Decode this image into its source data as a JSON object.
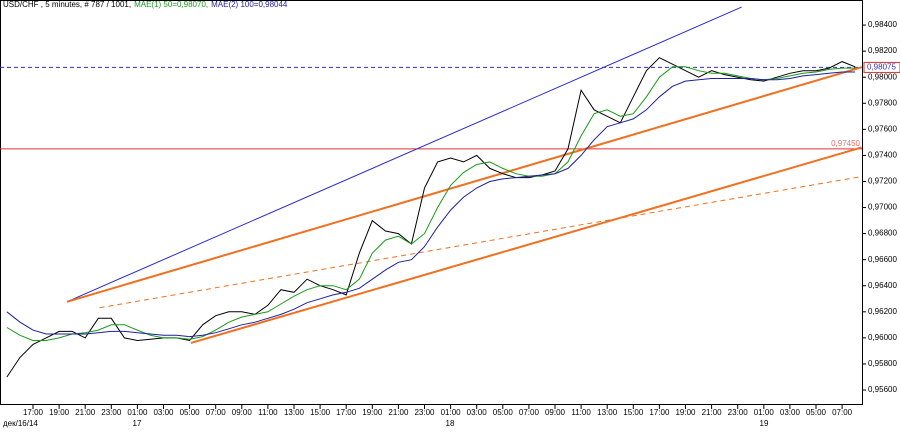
{
  "chart_data": {
    "type": "line",
    "title": "USD/CHF , 5 minutes, # 787 / 1001,",
    "categories": [
      null,
      null,
      "17:00",
      null,
      "19:00",
      null,
      "21:00",
      null,
      "23:00",
      null,
      "01:00",
      null,
      "03:00",
      null,
      "05:00",
      null,
      "07:00",
      null,
      "09:00",
      null,
      "11:00",
      null,
      "13:00",
      null,
      "15:00",
      null,
      "17:00",
      null,
      "19:00",
      null,
      "21:00",
      null,
      "23:00",
      null,
      "01:00",
      null,
      "03:00",
      null,
      "05:00",
      null,
      "07:00",
      null,
      "09:00",
      null,
      "11:00",
      null,
      "13:00",
      null,
      "15:00",
      null,
      "17:00",
      null,
      "19:00",
      null,
      "21:00",
      null,
      "23:00",
      null,
      "01:00",
      null,
      "03:00",
      null,
      "05:00",
      null,
      "07:00",
      null
    ],
    "day_labels": [
      "дек/16/14",
      "17",
      "18",
      "19"
    ],
    "series": [
      {
        "color": "#000000",
        "values": [
          0.957,
          0.9585,
          0.9595,
          0.96,
          0.9605,
          0.9605,
          0.96,
          0.9615,
          0.9615,
          0.96,
          0.9598,
          0.9599,
          0.96,
          0.96,
          0.9598,
          0.961,
          0.9617,
          0.962,
          0.962,
          0.9618,
          0.9625,
          0.9637,
          0.9635,
          0.9645,
          0.964,
          0.9637,
          0.9633,
          0.9665,
          0.969,
          0.9682,
          0.968,
          0.9672,
          0.9715,
          0.9735,
          0.9738,
          0.9735,
          0.974,
          0.973,
          0.9726,
          0.9723,
          0.9723,
          0.9725,
          0.9728,
          0.9745,
          0.979,
          0.9775,
          0.977,
          0.9765,
          0.9785,
          0.9805,
          0.9815,
          0.981,
          0.9805,
          0.98,
          0.9805,
          0.9802,
          0.98,
          0.9798,
          0.9797,
          0.98,
          0.9803,
          0.9805,
          0.9805,
          0.9807,
          0.9812,
          0.9808
        ]
      },
      {
        "name": "MAE(1) 50=0,98070,",
        "color": "#1a9a1a",
        "values": [
          0.9608,
          0.9602,
          0.9598,
          0.9598,
          0.96,
          0.9603,
          0.9604,
          0.9606,
          0.961,
          0.961,
          0.9606,
          0.9602,
          0.96,
          0.96,
          0.9599,
          0.9601,
          0.9606,
          0.9612,
          0.9616,
          0.9618,
          0.962,
          0.9626,
          0.9632,
          0.9637,
          0.964,
          0.964,
          0.9637,
          0.9645,
          0.9665,
          0.9675,
          0.9678,
          0.9672,
          0.968,
          0.97,
          0.9717,
          0.9727,
          0.9733,
          0.9735,
          0.973,
          0.9726,
          0.9724,
          0.9724,
          0.9726,
          0.9735,
          0.9755,
          0.9772,
          0.9775,
          0.977,
          0.9772,
          0.9785,
          0.98,
          0.9808,
          0.9808,
          0.9805,
          0.9803,
          0.9803,
          0.9801,
          0.9799,
          0.9798,
          0.9799,
          0.9801,
          0.9803,
          0.9804,
          0.9806,
          0.9807,
          0.9807
        ]
      },
      {
        "name": "MAE(2) 100=0,98044",
        "color": "#1f1fa0",
        "values": [
          0.962,
          0.9612,
          0.9606,
          0.9603,
          0.9603,
          0.9603,
          0.9603,
          0.9604,
          0.9605,
          0.9605,
          0.9604,
          0.9603,
          0.9602,
          0.9602,
          0.9601,
          0.9602,
          0.9604,
          0.9607,
          0.961,
          0.9612,
          0.9615,
          0.9618,
          0.9622,
          0.9627,
          0.963,
          0.9633,
          0.9635,
          0.9638,
          0.9645,
          0.9652,
          0.9658,
          0.966,
          0.967,
          0.9685,
          0.9698,
          0.9708,
          0.9715,
          0.972,
          0.9722,
          0.9723,
          0.9724,
          0.9725,
          0.9726,
          0.973,
          0.974,
          0.9752,
          0.9762,
          0.9765,
          0.9768,
          0.9775,
          0.9785,
          0.9793,
          0.9797,
          0.9798,
          0.9799,
          0.9799,
          0.9799,
          0.9799,
          0.9798,
          0.9798,
          0.9799,
          0.9801,
          0.9802,
          0.9803,
          0.9804,
          0.9804
        ]
      }
    ],
    "trendlines": [
      {
        "color": "#2a2ad0",
        "x": [
          4.6,
          56.3
        ],
        "y": [
          0.96277,
          0.98538
        ]
      },
      {
        "color": "#f07020",
        "x": [
          4.6,
          65.5
        ],
        "y": [
          0.96277,
          0.98077
        ]
      },
      {
        "color": "#f07020",
        "x": [
          14.1,
          65.5
        ],
        "y": [
          0.95961,
          0.97461
        ]
      },
      {
        "color": "#f07020",
        "dashed": true,
        "x": [
          7.1,
          65.5
        ],
        "y": [
          0.96231,
          0.97238
        ]
      }
    ],
    "levels": [
      {
        "color": "#e03030",
        "value": 0.9745,
        "label": "0,97450"
      },
      {
        "color": "#3030c0",
        "dashed": true,
        "value": 0.98075,
        "label": "0,98075"
      }
    ],
    "ylim": [
      0.95485,
      0.98554
    ],
    "yticks": [
      {
        "value": 0.956,
        "label": "0,95600"
      },
      {
        "value": 0.958,
        "label": "0,95800"
      },
      {
        "value": 0.96,
        "label": "0,96000"
      },
      {
        "value": 0.962,
        "label": "0,96200"
      },
      {
        "value": 0.964,
        "label": "0,96400"
      },
      {
        "value": 0.966,
        "label": "0,96600"
      },
      {
        "value": 0.968,
        "label": "0,96800"
      },
      {
        "value": 0.97,
        "label": "0,97000"
      },
      {
        "value": 0.972,
        "label": "0,97200"
      },
      {
        "value": 0.974,
        "label": "0,97400"
      },
      {
        "value": 0.976,
        "label": "0,97600"
      },
      {
        "value": 0.978,
        "label": "0,97800"
      },
      {
        "value": 0.98,
        "label": "0,98000"
      },
      {
        "value": 0.982,
        "label": "0,98200"
      },
      {
        "value": 0.984,
        "label": "0,98400"
      }
    ]
  }
}
